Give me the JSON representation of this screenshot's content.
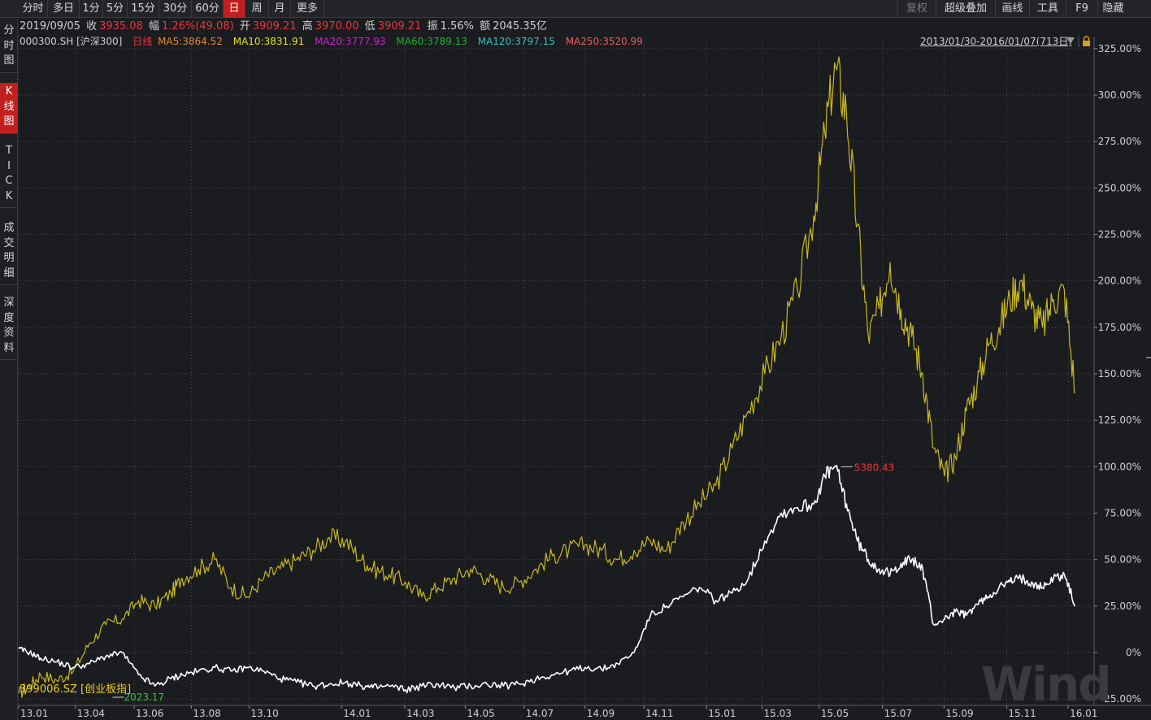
{
  "toolbar": {
    "period_tabs": [
      "分时",
      "多日",
      "1分",
      "5分",
      "15分",
      "30分",
      "60分",
      "日",
      "周",
      "月",
      "更多"
    ],
    "active_tab": "日",
    "right_buttons": [
      "复权",
      "超级叠加",
      "画线",
      "工具",
      "F9",
      "隐藏"
    ]
  },
  "quote": {
    "date": "2019/09/05",
    "close_label": "收",
    "close": "3935.08",
    "change_label": "幅",
    "change": "1.26%(49.08)",
    "open_label": "开",
    "open": "3909.21",
    "high_label": "高",
    "high": "3970.00",
    "low_label": "低",
    "low": "3909.21",
    "amplitude_label": "振",
    "amplitude": "1.56%",
    "amount_label": "额",
    "amount": "2045.35亿"
  },
  "legend": {
    "code": "000300.SH [沪深300]",
    "kline_label": "日线",
    "ma": [
      {
        "text": "MA5:3864.52",
        "color": "#e08a2e"
      },
      {
        "text": "MA10:3831.91",
        "color": "#e8e020"
      },
      {
        "text": "MA20:3777.93",
        "color": "#d020d0"
      },
      {
        "text": "MA60:3789.13",
        "color": "#20b030"
      },
      {
        "text": "MA120:3797.15",
        "color": "#30c0c0"
      },
      {
        "text": "MA250:3520.99",
        "color": "#e86060"
      }
    ],
    "range": "2013/01/30-2016/01/07(713日)"
  },
  "sidebar": [
    {
      "label": "分时图",
      "active": false
    },
    {
      "label": "K线图",
      "active": true
    },
    {
      "label": "TICK",
      "active": false
    },
    {
      "label": "成交明细",
      "active": false
    },
    {
      "label": "深度资料",
      "active": false
    }
  ],
  "chart_data": {
    "type": "line",
    "ylim": [
      -25,
      325
    ],
    "yticks": [
      "325.00%",
      "300.00%",
      "275.00%",
      "250.00%",
      "225.00%",
      "200.00%",
      "175.00%",
      "150.00%",
      "125.00%",
      "100.00%",
      "75.00%",
      "50.00%",
      "25.00%",
      "0%",
      "-25.00%"
    ],
    "ytick_values": [
      325,
      300,
      275,
      250,
      225,
      200,
      175,
      150,
      125,
      100,
      75,
      50,
      25,
      0,
      -25
    ],
    "xticks": [
      "13.01",
      "13.04",
      "13.06",
      "13.08",
      "13.10",
      "14.01",
      "14.03",
      "14.05",
      "14.07",
      "14.09",
      "14.11",
      "15.01",
      "15.03",
      "15.05",
      "15.07",
      "15.09",
      "15.11",
      "16.01"
    ],
    "xtick_t": [
      0.0,
      0.104,
      0.212,
      0.317,
      0.423,
      0.593,
      0.709,
      0.82,
      0.928,
      1.04,
      1.148,
      1.263,
      1.365,
      1.47,
      1.586,
      1.699,
      1.814,
      1.927
    ],
    "series": [
      {
        "name": "399006.SZ [创业板指]",
        "color": "#c8b820",
        "t": [
          0.0,
          0.02,
          0.04,
          0.07,
          0.1,
          0.13,
          0.16,
          0.19,
          0.22,
          0.25,
          0.28,
          0.3,
          0.33,
          0.36,
          0.39,
          0.42,
          0.45,
          0.48,
          0.51,
          0.54,
          0.57,
          0.6,
          0.63,
          0.65,
          0.68,
          0.71,
          0.74,
          0.77,
          0.8,
          0.83,
          0.86,
          0.89,
          0.92,
          0.95,
          0.98,
          1.01,
          1.04,
          1.07,
          1.1,
          1.13,
          1.16,
          1.19,
          1.22,
          1.25,
          1.28,
          1.31,
          1.34,
          1.37,
          1.4,
          1.43,
          1.46,
          1.48,
          1.5,
          1.52,
          1.54,
          1.56,
          1.58,
          1.6,
          1.62,
          1.64,
          1.66,
          1.68,
          1.7,
          1.72,
          1.74,
          1.76,
          1.78,
          1.8,
          1.82,
          1.84,
          1.86,
          1.88,
          1.9,
          1.92,
          1.94
        ],
        "values": [
          -22,
          -18,
          -12,
          -15,
          -10,
          5,
          15,
          18,
          28,
          25,
          32,
          40,
          45,
          50,
          35,
          30,
          40,
          45,
          50,
          55,
          62,
          60,
          50,
          45,
          42,
          38,
          30,
          35,
          40,
          45,
          40,
          35,
          38,
          45,
          52,
          55,
          58,
          55,
          50,
          55,
          60,
          55,
          70,
          80,
          90,
          110,
          130,
          150,
          170,
          195,
          235,
          280,
          315,
          290,
          230,
          170,
          185,
          210,
          185,
          170,
          150,
          110,
          95,
          105,
          130,
          145,
          165,
          175,
          190,
          200,
          185,
          175,
          190,
          195,
          140
        ],
        "label": "399006.SZ [创业板指]"
      },
      {
        "name": "000300.SH [沪深300]",
        "color": "#ffffff",
        "t": [
          0.0,
          0.02,
          0.04,
          0.07,
          0.1,
          0.13,
          0.16,
          0.19,
          0.22,
          0.25,
          0.28,
          0.3,
          0.33,
          0.36,
          0.39,
          0.42,
          0.45,
          0.48,
          0.51,
          0.54,
          0.57,
          0.6,
          0.63,
          0.65,
          0.68,
          0.71,
          0.74,
          0.77,
          0.8,
          0.83,
          0.86,
          0.89,
          0.92,
          0.95,
          0.98,
          1.01,
          1.04,
          1.07,
          1.1,
          1.13,
          1.16,
          1.19,
          1.22,
          1.25,
          1.28,
          1.31,
          1.34,
          1.37,
          1.4,
          1.43,
          1.46,
          1.48,
          1.5,
          1.52,
          1.54,
          1.56,
          1.58,
          1.6,
          1.62,
          1.64,
          1.66,
          1.68,
          1.7,
          1.72,
          1.74,
          1.76,
          1.78,
          1.8,
          1.82,
          1.84,
          1.86,
          1.88,
          1.9,
          1.92,
          1.94
        ],
        "values": [
          2,
          0,
          -3,
          -5,
          -8,
          -6,
          -2,
          0,
          -12,
          -18,
          -14,
          -12,
          -10,
          -8,
          -10,
          -8,
          -10,
          -14,
          -16,
          -18,
          -17,
          -16,
          -18,
          -19,
          -18,
          -20,
          -18,
          -17,
          -19,
          -18,
          -17,
          -18,
          -17,
          -14,
          -12,
          -10,
          -8,
          -9,
          -6,
          0,
          20,
          25,
          30,
          35,
          28,
          32,
          40,
          60,
          75,
          78,
          80,
          95,
          100,
          80,
          60,
          50,
          45,
          42,
          48,
          50,
          45,
          15,
          18,
          22,
          20,
          26,
          30,
          35,
          38,
          40,
          38,
          35,
          40,
          42,
          25
        ],
        "label": "000300.SH [沪深300]"
      }
    ],
    "annotations": [
      {
        "text": "5380.43",
        "x_t": 1.51,
        "y": 100,
        "color": "#e8373e",
        "series": "000300.SH [沪深300]"
      },
      {
        "text": "2023.17",
        "x_t": 0.235,
        "y": -22,
        "color": "#40c040",
        "series": "000300.SH [沪深300]"
      }
    ],
    "watermark": "Wind"
  }
}
